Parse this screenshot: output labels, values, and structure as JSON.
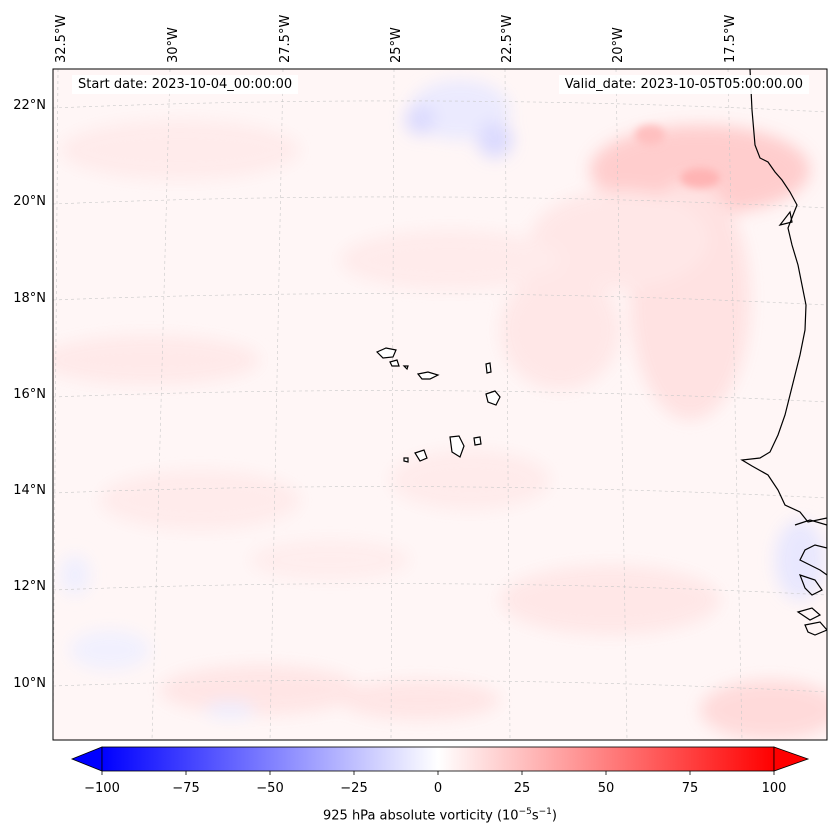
{
  "map": {
    "start_date": "Start date: 2023-10-04_00:00:00",
    "valid_date": "Valid_date: 2023-10-05T05:00:00.00",
    "lon_labels": [
      "32.5°W",
      "30°W",
      "27.5°W",
      "25°W",
      "22.5°W",
      "20°W",
      "17.5°W"
    ],
    "lat_labels": [
      "22°N",
      "20°N",
      "18°N",
      "16°N",
      "14°N",
      "12°N",
      "10°N"
    ],
    "field": "925 hPa absolute vorticity",
    "colors": {
      "neg": "#0000ff",
      "zero": "#ffffff",
      "pos": "#ff0000",
      "coast": "#000000",
      "grid": "#c8c8c8"
    }
  },
  "colorbar": {
    "ticks": [
      "−100",
      "−75",
      "−50",
      "−25",
      "0",
      "25",
      "50",
      "75",
      "100"
    ],
    "label_main": "925 hPa absolute vorticity (10",
    "label_exp1": "−5",
    "label_mid": "s",
    "label_exp2": "−1",
    "label_end": ")",
    "min": -100,
    "max": 100
  }
}
